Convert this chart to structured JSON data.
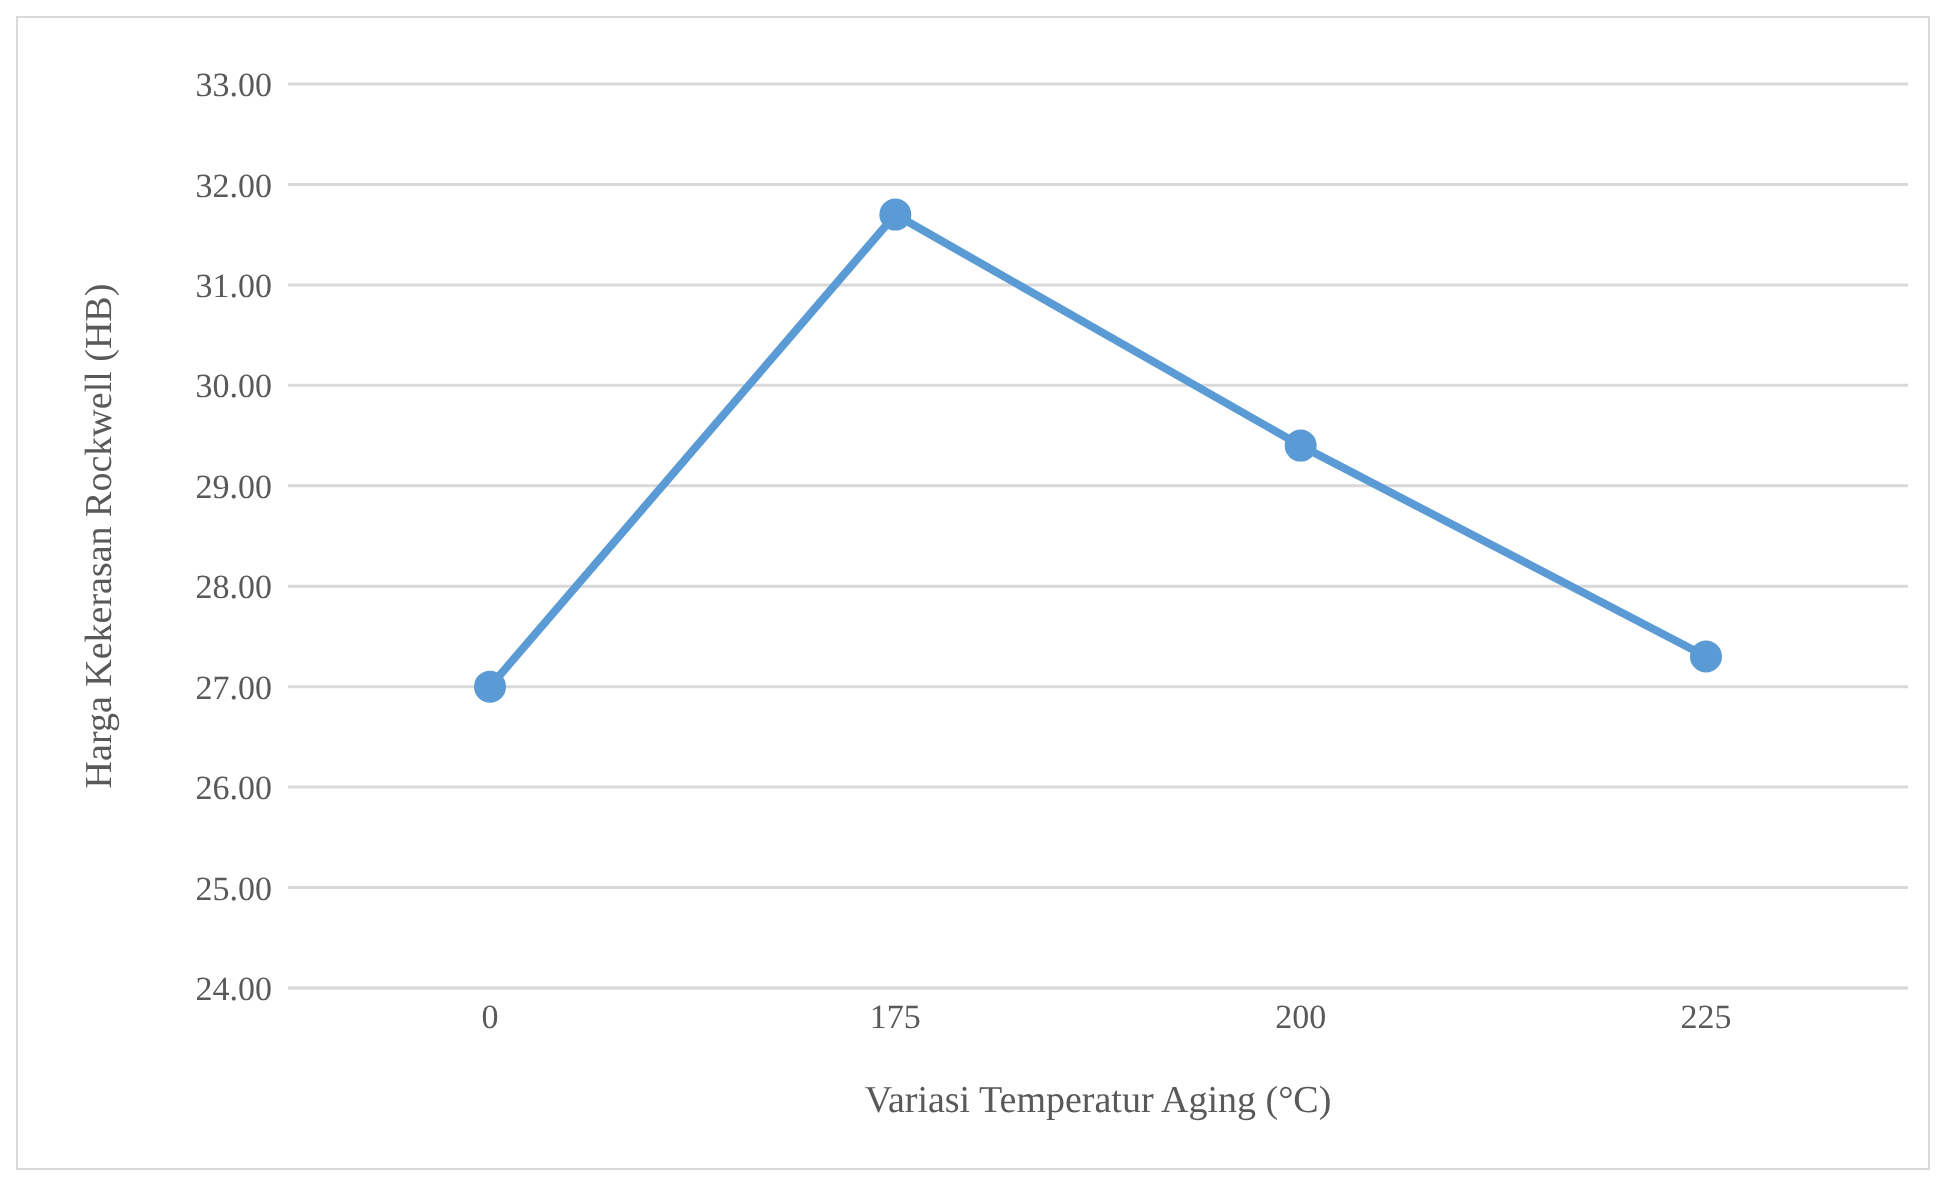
{
  "chart_data": {
    "type": "line",
    "xlabel": "Variasi Temperatur Aging (°C)",
    "ylabel": "Harga Kekerasan Rockwell (HB)",
    "categories": [
      "0",
      "175",
      "200",
      "225"
    ],
    "series": [
      {
        "color": "#5b9bd5",
        "values": [
          27.0,
          31.7,
          29.4,
          27.3
        ]
      }
    ],
    "ylim": [
      24,
      33
    ],
    "yticks": [
      {
        "value": 24,
        "label": "24.00"
      },
      {
        "value": 25,
        "label": "25.00"
      },
      {
        "value": 26,
        "label": "26.00"
      },
      {
        "value": 27,
        "label": "27.00"
      },
      {
        "value": 28,
        "label": "28.00"
      },
      {
        "value": 29,
        "label": "29.00"
      },
      {
        "value": 30,
        "label": "30.00"
      },
      {
        "value": 31,
        "label": "31.00"
      },
      {
        "value": 32,
        "label": "32.00"
      },
      {
        "value": 33,
        "label": "33.00"
      }
    ],
    "grid": "y",
    "marker": "circle",
    "line_style": "solid",
    "legend": false
  }
}
